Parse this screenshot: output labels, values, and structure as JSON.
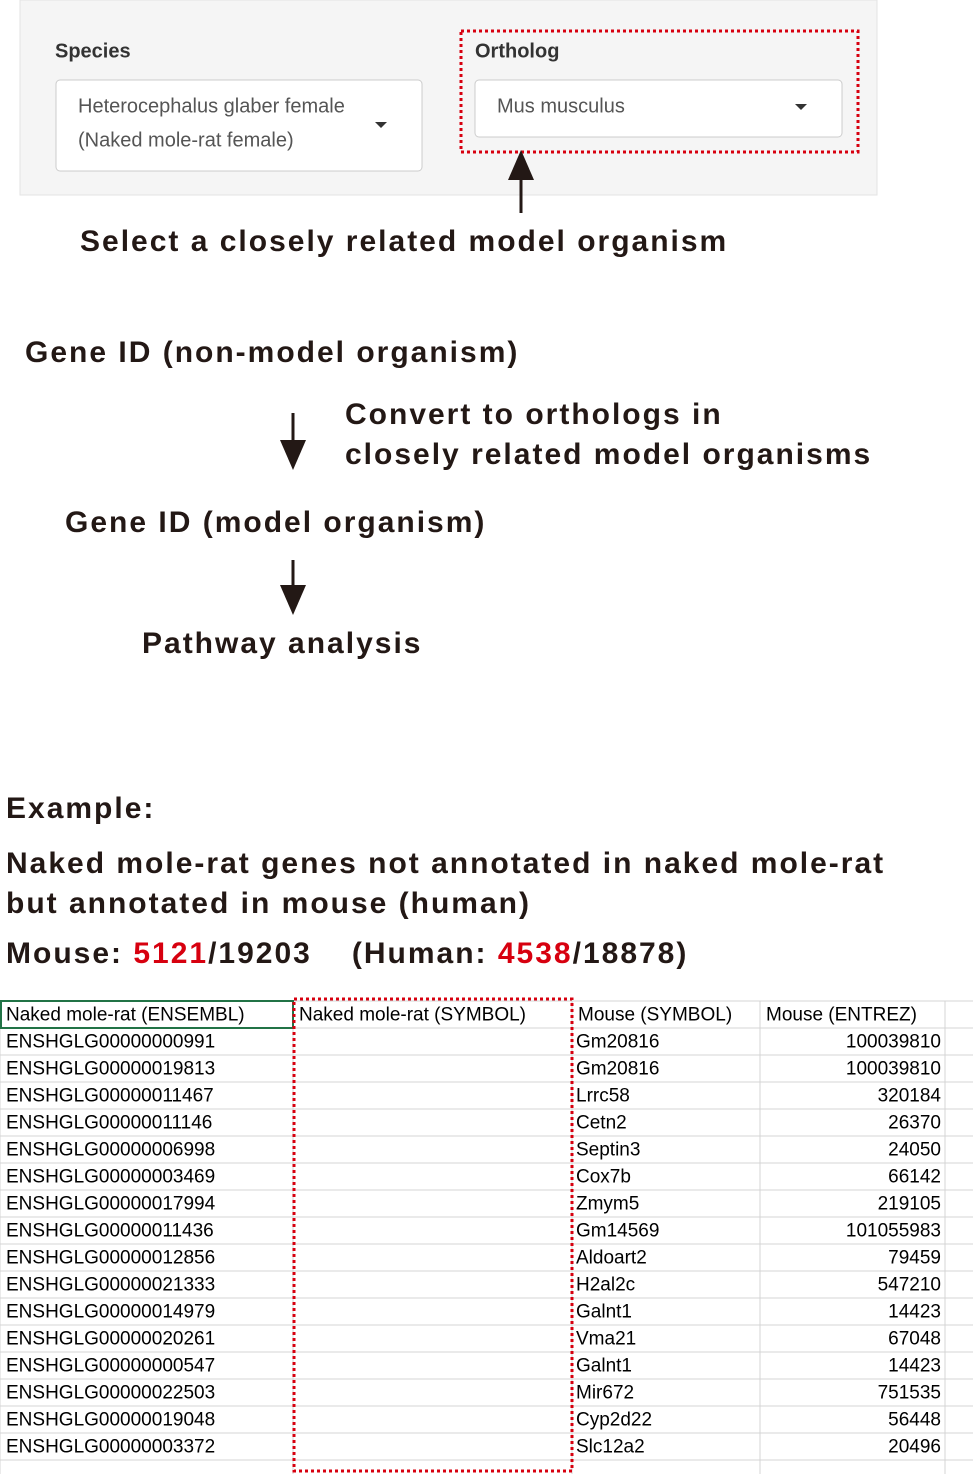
{
  "panel": {
    "species_label": "Species",
    "species_value": [
      "Heterocephalus glaber female",
      "(Naked mole-rat female)"
    ],
    "ortholog_label": "Ortholog",
    "ortholog_value": "Mus musculus"
  },
  "annotation": "Select a closely related model organism",
  "flow": {
    "step1": "Gene ID (non-model organism)",
    "convert": [
      "Convert to orthologs in",
      "closely related model organisms"
    ],
    "step2": "Gene ID (model organism)",
    "step3": "Pathway analysis"
  },
  "example": {
    "heading": "Example:",
    "description": [
      "Naked mole-rat genes not annotated in naked mole-rat",
      "but annotated in mouse (human)"
    ],
    "mouse_prefix": "Mouse: ",
    "mouse_count": "5121",
    "mouse_total": "/19203",
    "human_prefix": "(Human: ",
    "human_count": "4538",
    "human_total": "/18878)"
  },
  "table": {
    "headers": [
      "Naked mole-rat (ENSEMBL)",
      "Naked mole-rat (SYMBOL)",
      "Mouse (SYMBOL)",
      "Mouse (ENTREZ)"
    ],
    "rows": [
      [
        "ENSHGLG00000000991",
        "Gm20816",
        100039810
      ],
      [
        "ENSHGLG00000019813",
        "Gm20816",
        100039810
      ],
      [
        "ENSHGLG00000011467",
        "Lrrc58",
        320184
      ],
      [
        "ENSHGLG00000011146",
        "Cetn2",
        26370
      ],
      [
        "ENSHGLG00000006998",
        "Septin3",
        24050
      ],
      [
        "ENSHGLG00000003469",
        "Cox7b",
        66142
      ],
      [
        "ENSHGLG00000017994",
        "Zmym5",
        219105
      ],
      [
        "ENSHGLG00000011436",
        "Gm14569",
        101055983
      ],
      [
        "ENSHGLG00000012856",
        "Aldoart2",
        79459
      ],
      [
        "ENSHGLG00000021333",
        "H2al2c",
        547210
      ],
      [
        "ENSHGLG00000014979",
        "Galnt1",
        14423
      ],
      [
        "ENSHGLG00000020261",
        "Vma21",
        67048
      ],
      [
        "ENSHGLG00000000547",
        "Galnt1",
        14423
      ],
      [
        "ENSHGLG00000022503",
        "Mir672",
        751535
      ],
      [
        "ENSHGLG00000019048",
        "Cyp2d22",
        56448
      ],
      [
        "ENSHGLG00000003372",
        "Slc12a2",
        20496
      ]
    ]
  }
}
